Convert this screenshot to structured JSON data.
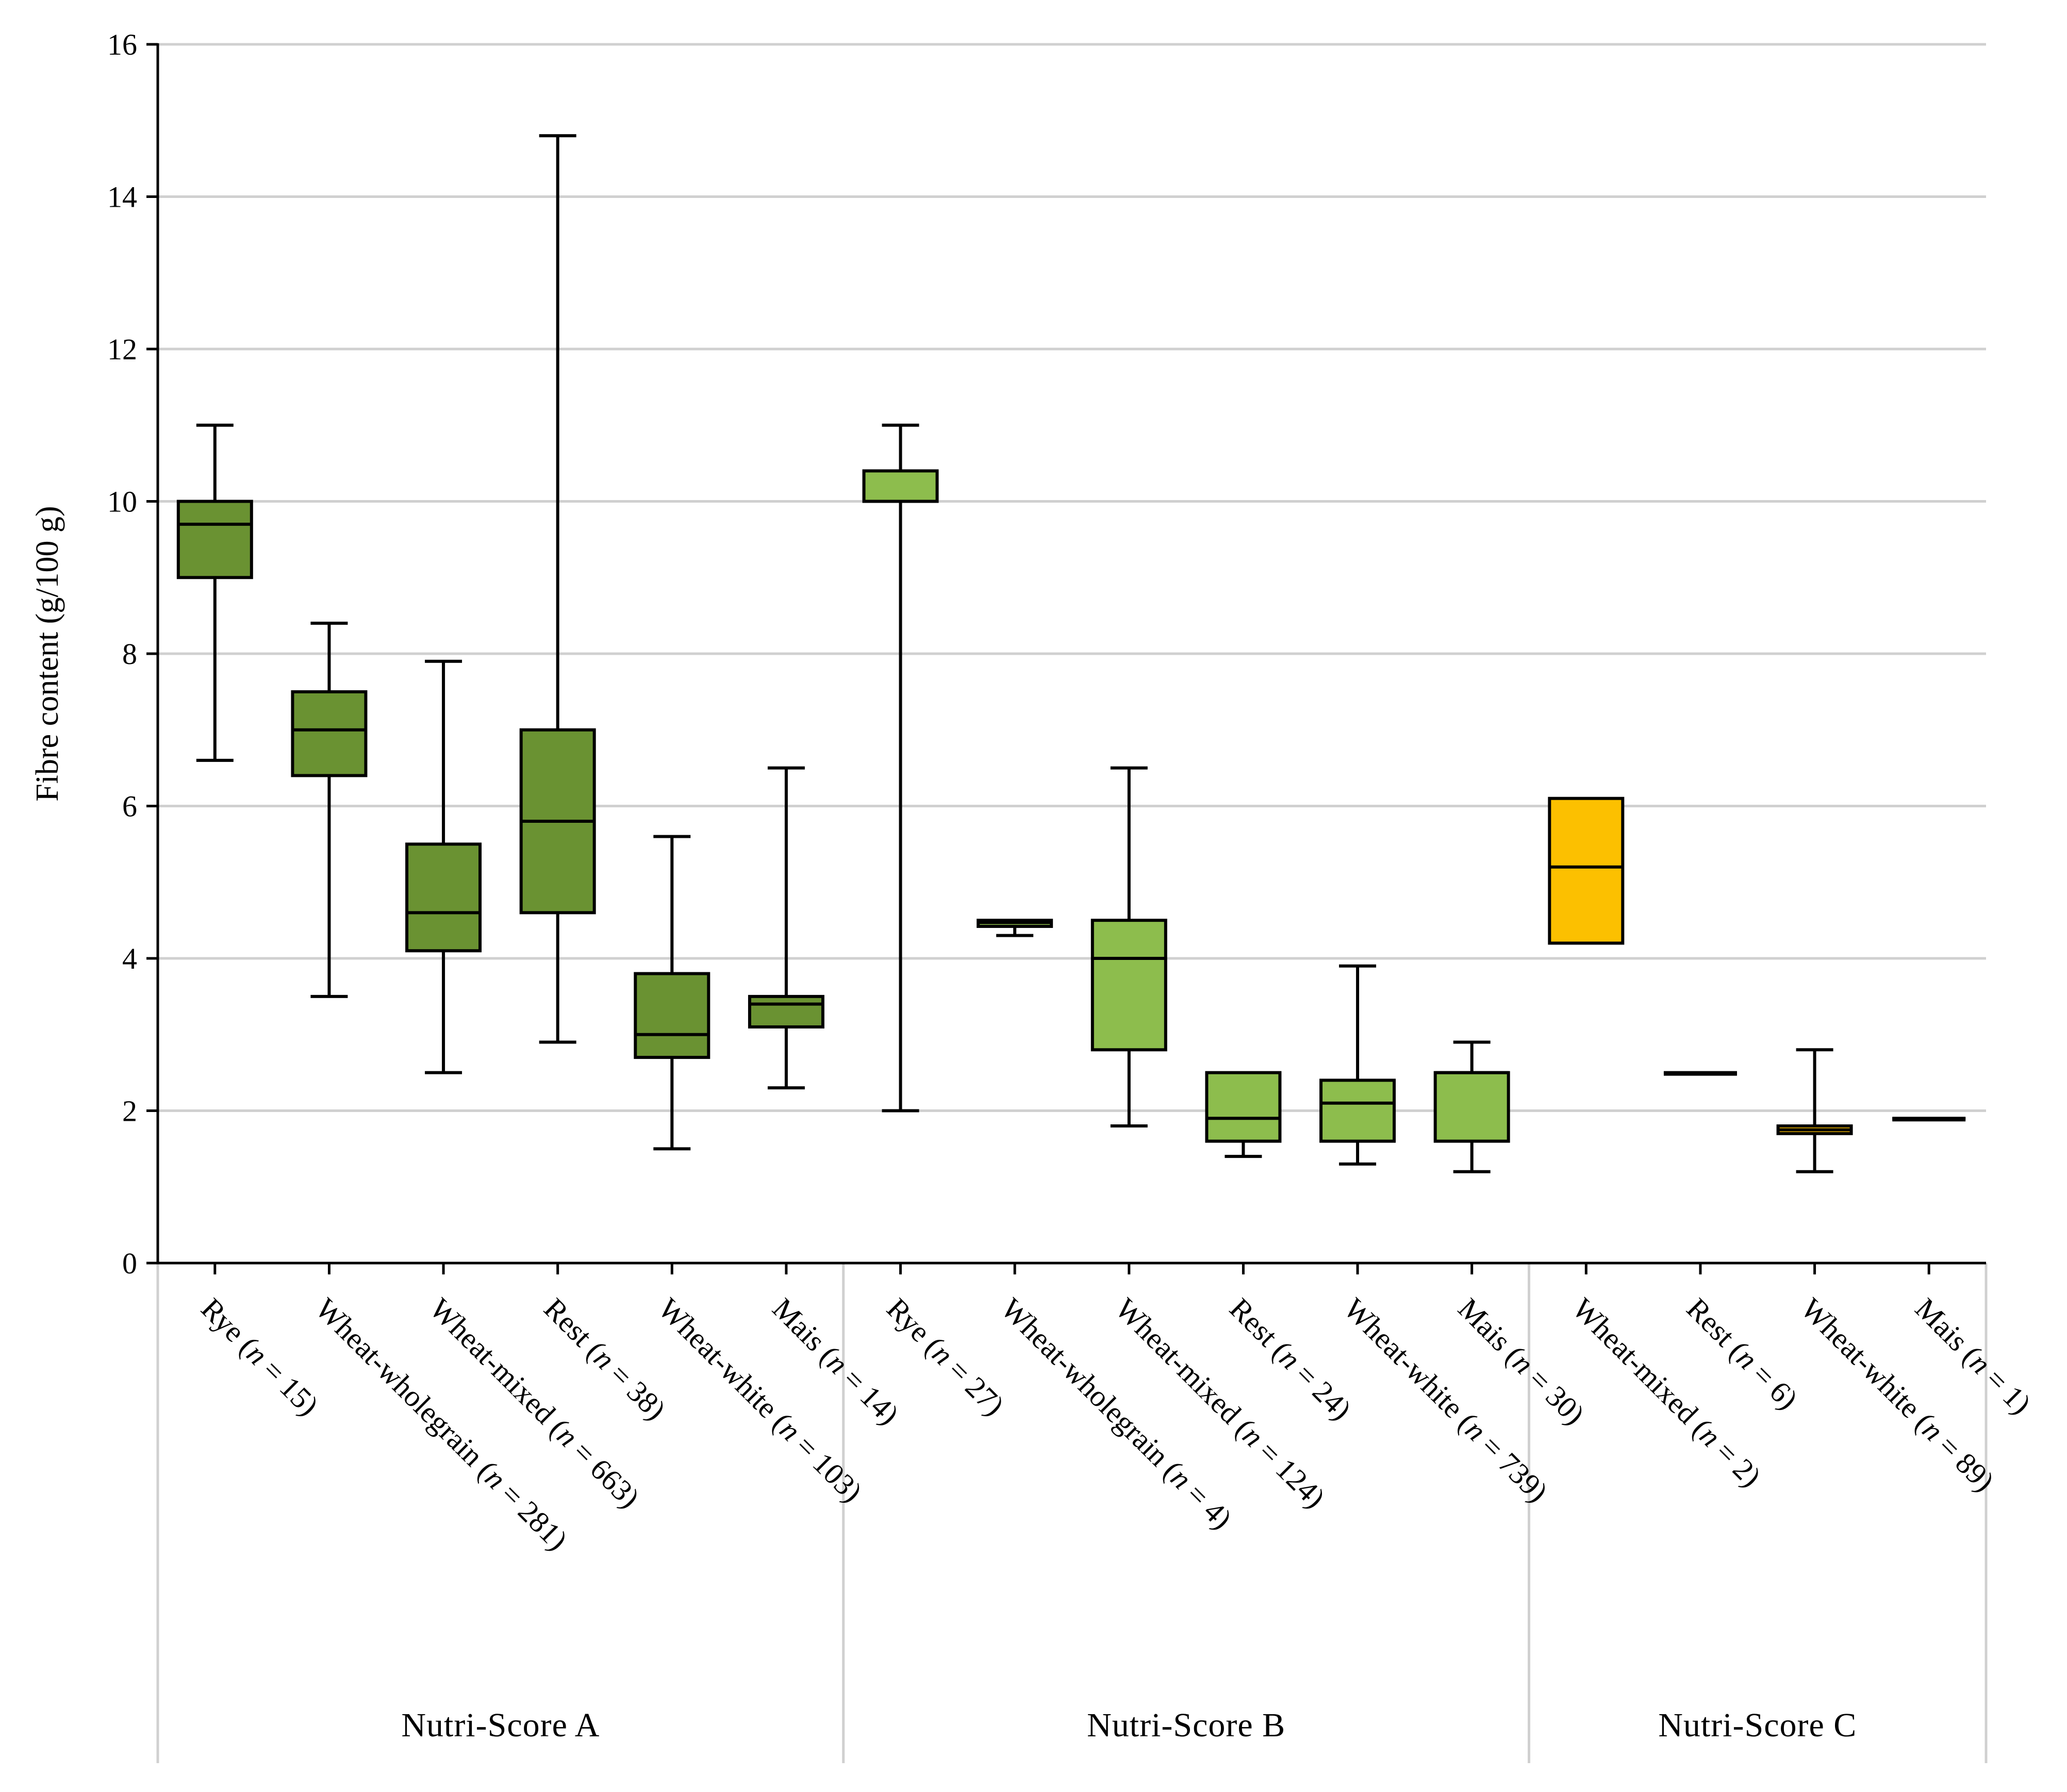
{
  "chart_data": {
    "type": "boxplot",
    "ylabel": "Fibre content (g/100 g)",
    "ylim": [
      0,
      16
    ],
    "yticks": [
      "0",
      "2",
      "4",
      "6",
      "8",
      "10",
      "12",
      "14",
      "16"
    ],
    "grid": true,
    "groups": [
      {
        "name": "Nutri-Score A",
        "color": "#6a9232",
        "boxes": [
          {
            "label": "Rye",
            "n": "15",
            "min": 6.6,
            "q1": 9.0,
            "median": 9.7,
            "q3": 10.0,
            "max": 11.0
          },
          {
            "label": "Wheat-wholegrain",
            "n": "281",
            "min": 3.5,
            "q1": 6.4,
            "median": 7.0,
            "q3": 7.5,
            "max": 8.4
          },
          {
            "label": "Wheat-mixed",
            "n": "663",
            "min": 2.5,
            "q1": 4.1,
            "median": 4.6,
            "q3": 5.5,
            "max": 7.9
          },
          {
            "label": "Rest",
            "n": "38",
            "min": 2.9,
            "q1": 4.6,
            "median": 5.8,
            "q3": 7.0,
            "max": 14.8
          },
          {
            "label": "Wheat-white",
            "n": "103",
            "min": 1.5,
            "q1": 2.7,
            "median": 3.0,
            "q3": 3.8,
            "max": 5.6
          },
          {
            "label": "Mais",
            "n": "14",
            "min": 2.3,
            "q1": 3.1,
            "median": 3.4,
            "q3": 3.5,
            "max": 6.5
          }
        ]
      },
      {
        "name": "Nutri-Score B",
        "color": "#8dbd4d",
        "boxes": [
          {
            "label": "Rye",
            "n": "27",
            "min": 2.0,
            "q1": 10.0,
            "median": 10.0,
            "q3": 10.4,
            "max": 11.0
          },
          {
            "label": "Wheat-wholegrain",
            "n": "4",
            "min": 4.3,
            "q1": 4.42,
            "median": 4.47,
            "q3": 4.5,
            "max": 4.5
          },
          {
            "label": "Wheat-mixed",
            "n": "124",
            "min": 1.8,
            "q1": 2.8,
            "median": 4.0,
            "q3": 4.5,
            "max": 6.5
          },
          {
            "label": "Rest",
            "n": "24",
            "min": 1.4,
            "q1": 1.6,
            "median": 1.9,
            "q3": 2.5,
            "max": 2.5
          },
          {
            "label": "Wheat-white",
            "n": "739",
            "min": 1.3,
            "q1": 1.6,
            "median": 2.1,
            "q3": 2.4,
            "max": 3.9
          },
          {
            "label": "Mais",
            "n": "30",
            "min": 1.2,
            "q1": 1.6,
            "median": 2.5,
            "q3": 2.5,
            "max": 2.9
          }
        ]
      },
      {
        "name": "Nutri-Score C",
        "color": "#fcc000",
        "boxes": [
          {
            "label": "Wheat-mixed",
            "n": "2",
            "min": 4.2,
            "q1": 4.2,
            "median": 5.2,
            "q3": 6.1,
            "max": 6.1
          },
          {
            "label": "Rest",
            "n": "6",
            "min": 2.5,
            "q1": 2.5,
            "median": 2.5,
            "q3": 2.5,
            "max": 2.5
          },
          {
            "label": "Wheat-white",
            "n": "89",
            "min": 1.2,
            "q1": 1.7,
            "median": 1.75,
            "q3": 1.8,
            "max": 2.8
          },
          {
            "label": "Mais",
            "n": "1",
            "min": 1.9,
            "q1": 1.9,
            "median": 1.9,
            "q3": 1.9,
            "max": 1.9
          }
        ]
      }
    ]
  }
}
